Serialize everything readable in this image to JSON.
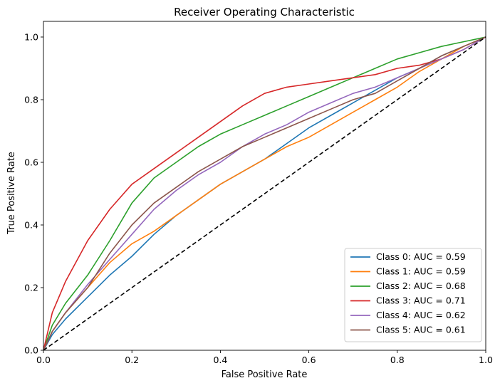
{
  "chart_data": {
    "type": "line",
    "title": "Receiver Operating Characteristic",
    "xlabel": "False Positive Rate",
    "ylabel": "True Positive Rate",
    "xlim": [
      0.0,
      1.0
    ],
    "ylim": [
      0.0,
      1.05
    ],
    "xticks": [
      0.0,
      0.2,
      0.4,
      0.6,
      0.8,
      1.0
    ],
    "yticks": [
      0.0,
      0.2,
      0.4,
      0.6,
      0.8,
      1.0
    ],
    "x_tick_labels": [
      "0.0",
      "0.2",
      "0.4",
      "0.6",
      "0.8",
      "1.0"
    ],
    "y_tick_labels": [
      "0.0",
      "0.2",
      "0.4",
      "0.6",
      "0.8",
      "1.0"
    ],
    "grid": false,
    "legend_position": "lower-right",
    "chance_line": {
      "x": [
        0,
        1
      ],
      "y": [
        0,
        1
      ],
      "style": "dashed",
      "color": "#000000"
    },
    "series": [
      {
        "name": "Class 0: AUC = 0.59",
        "color": "#1f77b4",
        "x": [
          0,
          0.02,
          0.05,
          0.1,
          0.15,
          0.2,
          0.25,
          0.3,
          0.35,
          0.4,
          0.45,
          0.5,
          0.55,
          0.6,
          0.65,
          0.7,
          0.75,
          0.8,
          0.85,
          0.9,
          0.95,
          1.0
        ],
        "y": [
          0,
          0.05,
          0.1,
          0.17,
          0.24,
          0.3,
          0.37,
          0.43,
          0.48,
          0.53,
          0.57,
          0.61,
          0.66,
          0.71,
          0.75,
          0.79,
          0.83,
          0.87,
          0.9,
          0.94,
          0.97,
          1.0
        ]
      },
      {
        "name": "Class 1: AUC = 0.59",
        "color": "#ff7f0e",
        "x": [
          0,
          0.02,
          0.05,
          0.1,
          0.15,
          0.2,
          0.25,
          0.3,
          0.35,
          0.4,
          0.45,
          0.5,
          0.55,
          0.6,
          0.65,
          0.7,
          0.75,
          0.8,
          0.85,
          0.9,
          0.95,
          1.0
        ],
        "y": [
          0,
          0.06,
          0.12,
          0.2,
          0.28,
          0.34,
          0.38,
          0.43,
          0.48,
          0.53,
          0.57,
          0.61,
          0.65,
          0.68,
          0.72,
          0.76,
          0.8,
          0.84,
          0.89,
          0.93,
          0.97,
          1.0
        ]
      },
      {
        "name": "Class 2: AUC = 0.68",
        "color": "#2ca02c",
        "x": [
          0,
          0.02,
          0.05,
          0.1,
          0.15,
          0.2,
          0.25,
          0.3,
          0.35,
          0.4,
          0.45,
          0.5,
          0.55,
          0.6,
          0.65,
          0.7,
          0.75,
          0.8,
          0.85,
          0.9,
          0.95,
          1.0
        ],
        "y": [
          0,
          0.08,
          0.15,
          0.24,
          0.35,
          0.47,
          0.55,
          0.6,
          0.65,
          0.69,
          0.72,
          0.75,
          0.78,
          0.81,
          0.84,
          0.87,
          0.9,
          0.93,
          0.95,
          0.97,
          0.985,
          1.0
        ]
      },
      {
        "name": "Class 3: AUC = 0.71",
        "color": "#d62728",
        "x": [
          0,
          0.02,
          0.05,
          0.1,
          0.15,
          0.2,
          0.25,
          0.3,
          0.35,
          0.4,
          0.45,
          0.5,
          0.55,
          0.6,
          0.65,
          0.7,
          0.75,
          0.8,
          0.85,
          0.9,
          0.95,
          1.0
        ],
        "y": [
          0,
          0.12,
          0.22,
          0.35,
          0.45,
          0.53,
          0.58,
          0.63,
          0.68,
          0.73,
          0.78,
          0.82,
          0.84,
          0.85,
          0.86,
          0.87,
          0.88,
          0.9,
          0.91,
          0.93,
          0.96,
          1.0
        ]
      },
      {
        "name": "Class 4: AUC = 0.62",
        "color": "#9467bd",
        "x": [
          0,
          0.02,
          0.05,
          0.1,
          0.15,
          0.2,
          0.25,
          0.3,
          0.35,
          0.4,
          0.45,
          0.5,
          0.55,
          0.6,
          0.65,
          0.7,
          0.75,
          0.8,
          0.85,
          0.9,
          0.95,
          1.0
        ],
        "y": [
          0,
          0.06,
          0.12,
          0.21,
          0.29,
          0.37,
          0.45,
          0.51,
          0.56,
          0.6,
          0.65,
          0.69,
          0.72,
          0.76,
          0.79,
          0.82,
          0.84,
          0.87,
          0.9,
          0.93,
          0.96,
          1.0
        ]
      },
      {
        "name": "Class 5: AUC = 0.61",
        "color": "#8c564b",
        "x": [
          0,
          0.02,
          0.05,
          0.1,
          0.15,
          0.2,
          0.25,
          0.3,
          0.35,
          0.4,
          0.45,
          0.5,
          0.55,
          0.6,
          0.65,
          0.7,
          0.75,
          0.8,
          0.85,
          0.9,
          0.95,
          1.0
        ],
        "y": [
          0,
          0.06,
          0.12,
          0.2,
          0.31,
          0.4,
          0.47,
          0.52,
          0.57,
          0.61,
          0.65,
          0.68,
          0.71,
          0.74,
          0.77,
          0.8,
          0.82,
          0.86,
          0.9,
          0.94,
          0.97,
          1.0
        ]
      }
    ]
  }
}
